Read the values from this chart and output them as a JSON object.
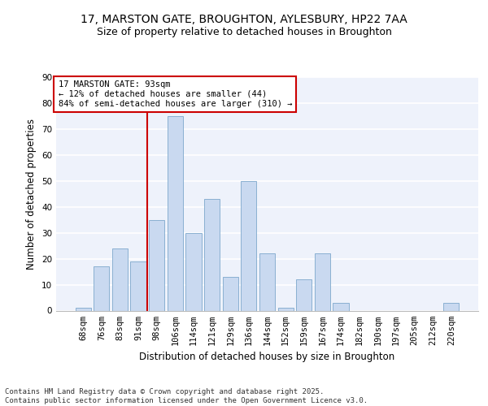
{
  "title_line1": "17, MARSTON GATE, BROUGHTON, AYLESBURY, HP22 7AA",
  "title_line2": "Size of property relative to detached houses in Broughton",
  "xlabel": "Distribution of detached houses by size in Broughton",
  "ylabel": "Number of detached properties",
  "categories": [
    "68sqm",
    "76sqm",
    "83sqm",
    "91sqm",
    "98sqm",
    "106sqm",
    "114sqm",
    "121sqm",
    "129sqm",
    "136sqm",
    "144sqm",
    "152sqm",
    "159sqm",
    "167sqm",
    "174sqm",
    "182sqm",
    "190sqm",
    "197sqm",
    "205sqm",
    "212sqm",
    "220sqm"
  ],
  "values": [
    1,
    17,
    24,
    19,
    35,
    75,
    30,
    43,
    13,
    50,
    22,
    1,
    12,
    22,
    3,
    0,
    0,
    0,
    0,
    0,
    3
  ],
  "bar_color": "#c9d9f0",
  "bar_edge_color": "#7da8cc",
  "vline_x_index": 3,
  "vline_color": "#cc0000",
  "annotation_line1": "17 MARSTON GATE: 93sqm",
  "annotation_line2": "← 12% of detached houses are smaller (44)",
  "annotation_line3": "84% of semi-detached houses are larger (310) →",
  "annotation_box_color": "#ffffff",
  "annotation_box_edge_color": "#cc0000",
  "ylim": [
    0,
    90
  ],
  "yticks": [
    0,
    10,
    20,
    30,
    40,
    50,
    60,
    70,
    80,
    90
  ],
  "footer_text": "Contains HM Land Registry data © Crown copyright and database right 2025.\nContains public sector information licensed under the Open Government Licence v3.0.",
  "background_color": "#eef2fb",
  "grid_color": "#ffffff",
  "title_fontsize": 10,
  "subtitle_fontsize": 9,
  "axis_label_fontsize": 8.5,
  "tick_fontsize": 7.5,
  "annotation_fontsize": 7.5,
  "footer_fontsize": 6.5
}
